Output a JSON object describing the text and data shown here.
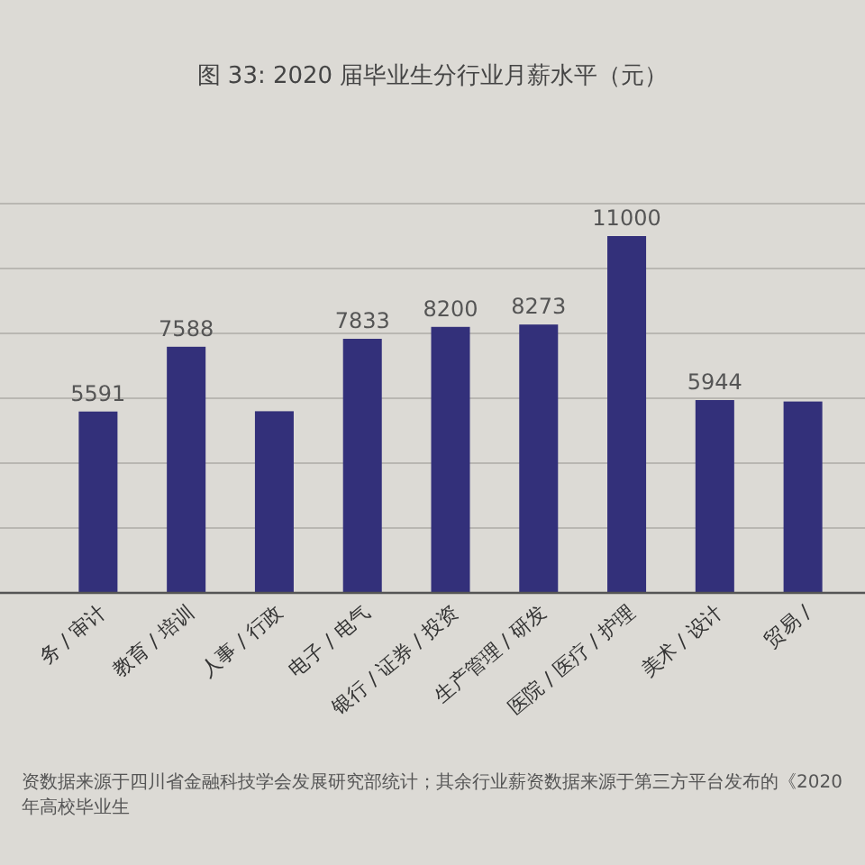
{
  "chart_data": {
    "type": "bar",
    "title": "图 33: 2020 届毕业生分行业月薪水平（元）",
    "categories": [
      "务 / 审计",
      "教育 / 培训",
      "人事 / 行政",
      "电子 / 电气",
      "银行 / 证券 / 投资",
      "生产管理 / 研发",
      "医院 / 医疗 / 护理",
      "美术 / 设计",
      "贸易 /"
    ],
    "values": [
      5591,
      7588,
      5600,
      7833,
      8200,
      8273,
      11000,
      5944,
      5900
    ],
    "value_labels": [
      "5591",
      "7588",
      null,
      "7833",
      "8200",
      "8273",
      "11000",
      "5944",
      null
    ],
    "color": "#33307a",
    "ylim": [
      0,
      12000
    ],
    "yticks": [
      {
        "value": 0,
        "label": null
      },
      {
        "value": 2000,
        "label": null
      },
      {
        "value": 4000,
        "label": null
      },
      {
        "value": 6000,
        "label": null
      },
      {
        "value": 8000,
        "label": null
      },
      {
        "value": 10000,
        "label": null
      },
      {
        "value": 12000,
        "label": null
      }
    ],
    "grid": "y",
    "tick_labels": "x",
    "annotations": [
      "资数据来源于四川省金融科技学会发展研究部统计；其余行业薪资数据来源于第三方平台发布的《2020 年高校毕业生"
    ]
  }
}
